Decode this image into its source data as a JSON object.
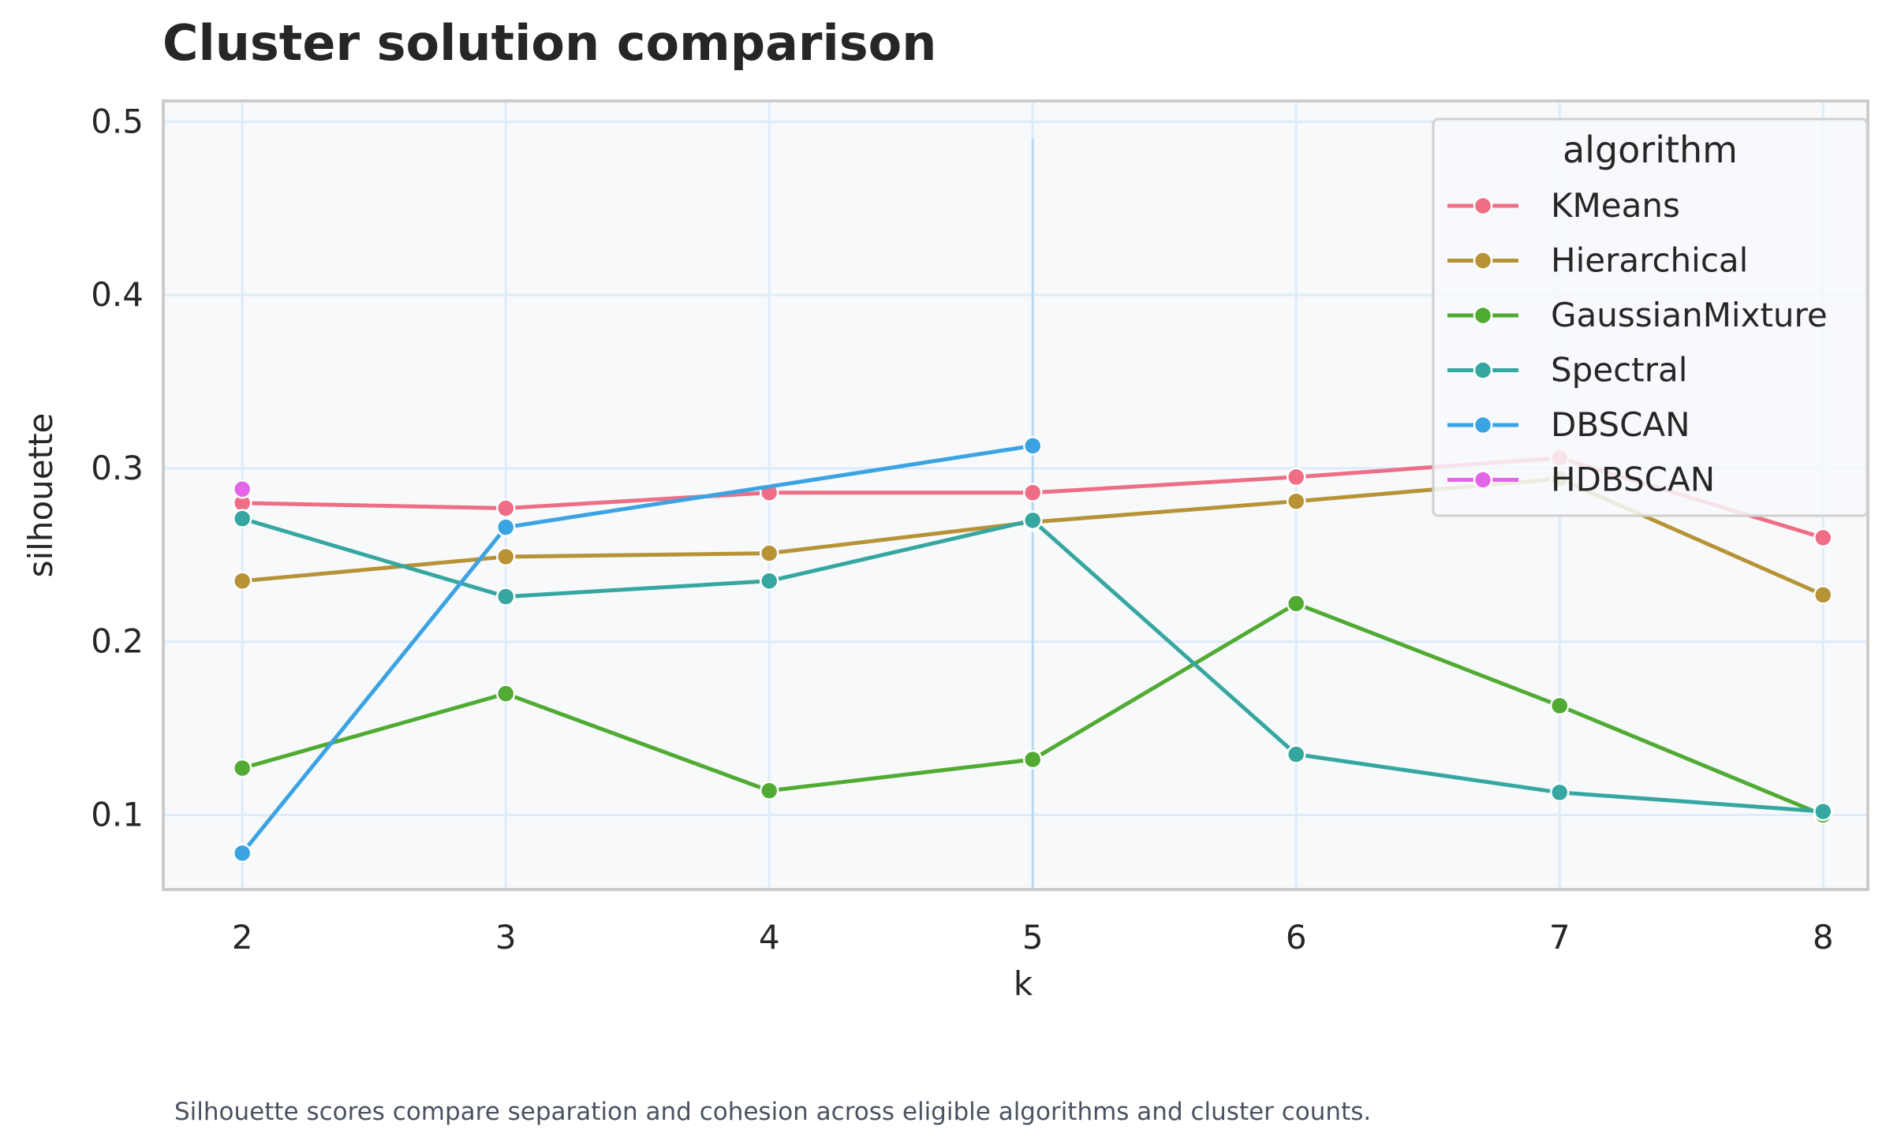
{
  "chart_data": {
    "type": "line",
    "title": "Cluster solution comparison",
    "xlabel": "k",
    "ylabel": "silhouette",
    "caption": "Silhouette scores compare separation and cohesion across eligible algorithms and cluster counts.",
    "x": [
      2,
      3,
      4,
      5,
      6,
      7,
      8
    ],
    "x_ticks": [
      "2",
      "3",
      "4",
      "5",
      "6",
      "7",
      "8"
    ],
    "y_ticks": [
      "0.1",
      "0.2",
      "0.3",
      "0.4",
      "0.5"
    ],
    "y_tick_values": [
      0.1,
      0.2,
      0.3,
      0.4,
      0.5
    ],
    "xlim": [
      1.7,
      8.17
    ],
    "ylim": [
      0.057,
      0.512
    ],
    "grid": true,
    "legend": {
      "title": "algorithm",
      "placement": "top-right"
    },
    "annotation_line_x": 5,
    "colors": {
      "background": "#f7f9fb",
      "grid": "#deebfa",
      "frame": "#cccccc",
      "vline": "#bcd8f0"
    },
    "series": [
      {
        "name": "KMeans",
        "color": "#ee6e86",
        "values": [
          0.28,
          0.277,
          0.286,
          0.286,
          0.295,
          0.306,
          0.26
        ]
      },
      {
        "name": "Hierarchical",
        "color": "#b79336",
        "values": [
          0.235,
          0.249,
          0.251,
          0.269,
          0.281,
          0.294,
          0.227
        ]
      },
      {
        "name": "GaussianMixture",
        "color": "#51ab33",
        "values": [
          0.127,
          0.17,
          0.114,
          0.132,
          0.222,
          0.163,
          0.1
        ]
      },
      {
        "name": "Spectral",
        "color": "#36a7a0",
        "values": [
          0.271,
          0.226,
          0.235,
          0.27,
          0.135,
          0.113,
          0.102
        ]
      },
      {
        "name": "DBSCAN",
        "color": "#3ba3e2",
        "values": [
          0.078,
          0.266,
          null,
          0.313,
          null,
          null,
          null
        ]
      },
      {
        "name": "HDBSCAN",
        "color": "#e466e8",
        "values": [
          0.288,
          null,
          null,
          null,
          null,
          null,
          null
        ]
      }
    ]
  }
}
